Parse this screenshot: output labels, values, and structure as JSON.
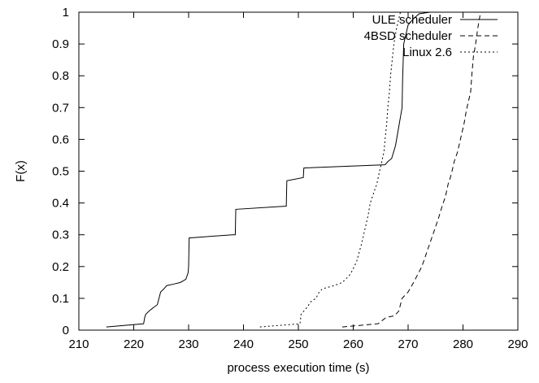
{
  "chart_data": {
    "type": "line",
    "xlabel": "process execution time (s)",
    "ylabel": "F(x)",
    "xlim": [
      210,
      290
    ],
    "ylim": [
      0,
      1
    ],
    "xticks": [
      210,
      220,
      230,
      240,
      250,
      260,
      270,
      280,
      290
    ],
    "yticks": [
      0,
      0.1,
      0.2,
      0.3,
      0.4,
      0.5,
      0.6,
      0.7,
      0.8,
      0.9,
      1
    ],
    "grid": false,
    "legend_position": "top-right",
    "series": [
      {
        "name": "ULE scheduler",
        "dash": "solid",
        "points": [
          [
            215,
            0.01
          ],
          [
            221.8,
            0.02
          ],
          [
            222,
            0.04
          ],
          [
            222.2,
            0.05
          ],
          [
            222.8,
            0.06
          ],
          [
            223.5,
            0.07
          ],
          [
            224.3,
            0.08
          ],
          [
            224.6,
            0.1
          ],
          [
            224.9,
            0.12
          ],
          [
            225.5,
            0.13
          ],
          [
            226,
            0.14
          ],
          [
            227.3,
            0.145
          ],
          [
            228.5,
            0.15
          ],
          [
            229.5,
            0.16
          ],
          [
            229.9,
            0.18
          ],
          [
            230,
            0.2
          ],
          [
            230.1,
            0.29
          ],
          [
            238,
            0.3
          ],
          [
            238.5,
            0.3
          ],
          [
            238.6,
            0.38
          ],
          [
            247.8,
            0.39
          ],
          [
            247.9,
            0.47
          ],
          [
            250.9,
            0.48
          ],
          [
            251,
            0.51
          ],
          [
            265.8,
            0.52
          ],
          [
            266.3,
            0.53
          ],
          [
            267,
            0.54
          ],
          [
            267.7,
            0.58
          ],
          [
            268.3,
            0.64
          ],
          [
            268.6,
            0.67
          ],
          [
            268.9,
            0.7
          ],
          [
            269,
            0.79
          ],
          [
            269.2,
            0.9
          ],
          [
            270,
            0.96
          ],
          [
            271,
            0.98
          ],
          [
            272,
            0.995
          ],
          [
            274,
            1.0
          ],
          [
            276,
            1.0
          ]
        ]
      },
      {
        "name": "4BSD scheduler",
        "dash": "dashed",
        "points": [
          [
            258,
            0.01
          ],
          [
            264.5,
            0.02
          ],
          [
            266,
            0.04
          ],
          [
            267.5,
            0.045
          ],
          [
            268.3,
            0.06
          ],
          [
            268.9,
            0.1
          ],
          [
            270,
            0.12
          ],
          [
            271,
            0.15
          ],
          [
            272.5,
            0.2
          ],
          [
            273.5,
            0.25
          ],
          [
            274.5,
            0.3
          ],
          [
            275.5,
            0.35
          ],
          [
            276.2,
            0.39
          ],
          [
            276.8,
            0.42
          ],
          [
            277.3,
            0.46
          ],
          [
            277.7,
            0.48
          ],
          [
            278,
            0.5
          ],
          [
            278.4,
            0.53
          ],
          [
            279,
            0.56
          ],
          [
            279.4,
            0.59
          ],
          [
            279.8,
            0.62
          ],
          [
            280.2,
            0.65
          ],
          [
            280.6,
            0.69
          ],
          [
            281,
            0.72
          ],
          [
            281.4,
            0.75
          ],
          [
            281.6,
            0.8
          ],
          [
            281.9,
            0.86
          ],
          [
            282.3,
            0.9
          ],
          [
            282.7,
            0.95
          ],
          [
            283.2,
            1.0
          ]
        ]
      },
      {
        "name": "Linux 2.6",
        "dash": "dotted",
        "points": [
          [
            243,
            0.01
          ],
          [
            250.3,
            0.02
          ],
          [
            250.5,
            0.05
          ],
          [
            251.5,
            0.07
          ],
          [
            252.3,
            0.09
          ],
          [
            253.2,
            0.1
          ],
          [
            253.8,
            0.12
          ],
          [
            254.4,
            0.13
          ],
          [
            256.5,
            0.14
          ],
          [
            258,
            0.15
          ],
          [
            259.2,
            0.17
          ],
          [
            259.6,
            0.18
          ],
          [
            260.2,
            0.2
          ],
          [
            260.7,
            0.22
          ],
          [
            261,
            0.24
          ],
          [
            261.5,
            0.27
          ],
          [
            261.9,
            0.3
          ],
          [
            262.3,
            0.33
          ],
          [
            262.7,
            0.36
          ],
          [
            263.1,
            0.4
          ],
          [
            263.5,
            0.42
          ],
          [
            263.9,
            0.44
          ],
          [
            264.3,
            0.46
          ],
          [
            264.8,
            0.5
          ],
          [
            265.2,
            0.53
          ],
          [
            265.6,
            0.56
          ],
          [
            265.8,
            0.6
          ],
          [
            266.1,
            0.65
          ],
          [
            266.3,
            0.7
          ],
          [
            266.6,
            0.75
          ],
          [
            266.8,
            0.8
          ],
          [
            267.1,
            0.85
          ],
          [
            267.4,
            0.9
          ],
          [
            267.9,
            0.95
          ],
          [
            268.6,
            1.0
          ]
        ]
      }
    ]
  }
}
